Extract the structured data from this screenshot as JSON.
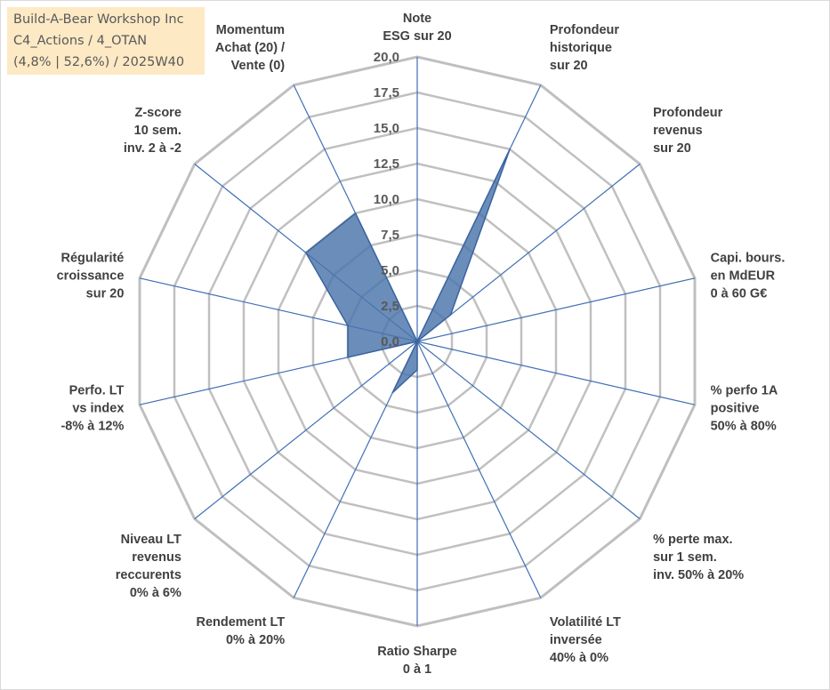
{
  "header": {
    "lines": [
      "Build-A-Bear Workshop Inc",
      "C4_Actions / 4_OTAN",
      "(4,8% | 52,6%) / 2025W40"
    ]
  },
  "chart_data": {
    "type": "radar",
    "title": "",
    "axes": [
      [
        "Note",
        "ESG sur 20"
      ],
      [
        "Profondeur",
        "historique",
        "sur 20"
      ],
      [
        "Profondeur",
        "revenus",
        "sur 20"
      ],
      [
        "Capi. bours.",
        "en MdEUR",
        "0 à 60 G€"
      ],
      [
        "% perfo 1A",
        "positive",
        "50% à 80%"
      ],
      [
        "% perte max.",
        "sur 1 sem.",
        "inv. 50% à 20%"
      ],
      [
        "Volatilité LT",
        "inversée",
        "40% à 0%"
      ],
      [
        "Ratio Sharpe",
        "0 à 1"
      ],
      [
        "Rendement LT",
        "0% à 20%"
      ],
      [
        "Niveau LT",
        "revenus",
        "reccurents",
        "0% à 6%"
      ],
      [
        "Perfo. LT",
        "vs index",
        "-8% à 12%"
      ],
      [
        "Régularité",
        "croissance",
        "sur 20"
      ],
      [
        "Z-score",
        "10 sem.",
        "inv. 2 à -2"
      ],
      [
        "Momentum",
        "Achat (20) /",
        "Vente (0)"
      ]
    ],
    "values": [
      0,
      15,
      3,
      0,
      0,
      0,
      0,
      2,
      4,
      0,
      5,
      5,
      10,
      10
    ],
    "range": [
      0,
      20
    ],
    "tick_labels": [
      "0,0",
      "2,5",
      "5,0",
      "7,5",
      "10,0",
      "12,5",
      "15,0",
      "17,5",
      "20,0"
    ],
    "grid": true,
    "legend": "none",
    "colors": {
      "fill": "#4a74aa",
      "stroke": "#3a64a0",
      "spoke": "#3f6fb5",
      "grid": "#c0c0c0",
      "outer": "#bfbfbf"
    }
  }
}
